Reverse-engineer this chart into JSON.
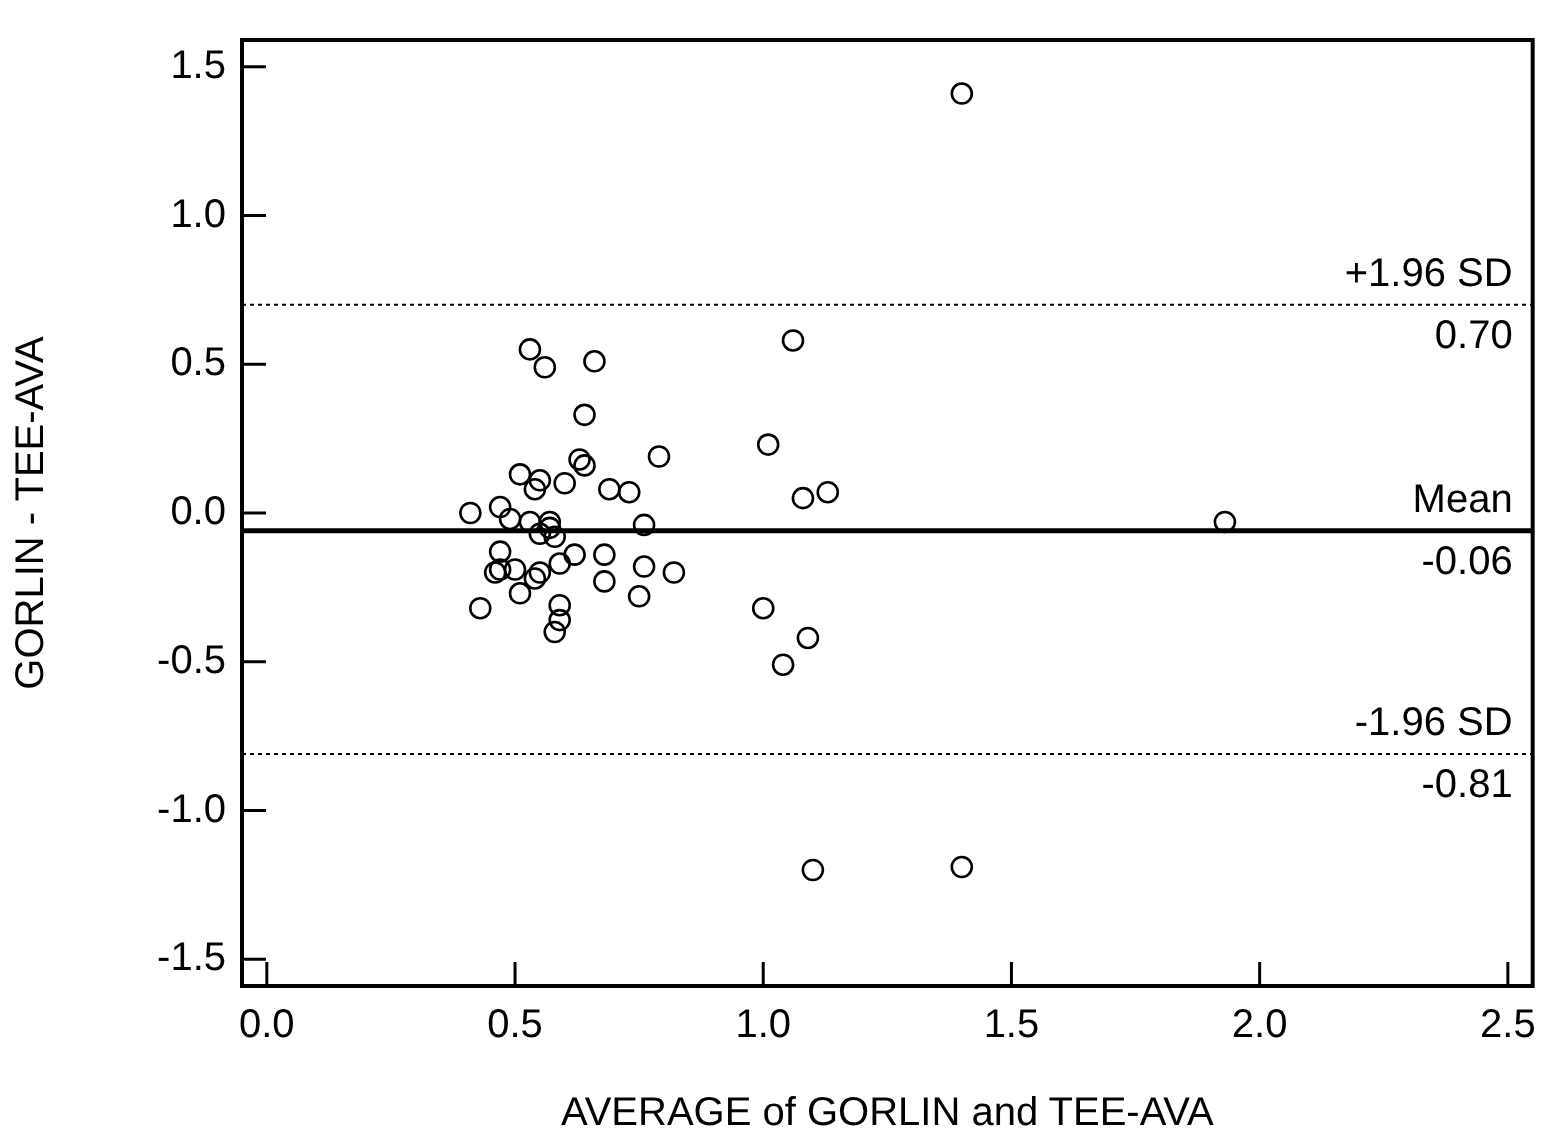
{
  "chart_data": {
    "type": "scatter",
    "xlabel": "AVERAGE of GORLIN and TEE-AVA",
    "ylabel": "GORLIN - TEE-AVA",
    "x": [
      0.53,
      0.56,
      0.66,
      0.64,
      0.79,
      0.63,
      0.64,
      0.51,
      0.55,
      0.54,
      0.6,
      0.69,
      0.73,
      0.47,
      0.41,
      0.49,
      0.53,
      0.57,
      0.57,
      0.55,
      0.58,
      0.76,
      0.47,
      0.62,
      0.68,
      0.59,
      0.46,
      0.47,
      0.5,
      0.55,
      0.54,
      0.76,
      0.82,
      0.68,
      0.51,
      0.75,
      0.43,
      0.59,
      0.59,
      0.58,
      1.06,
      1.01,
      1.08,
      1.13,
      1.0,
      1.09,
      1.04,
      1.1,
      1.4,
      1.4,
      1.93
    ],
    "values": [
      0.55,
      0.49,
      0.51,
      0.33,
      0.19,
      0.18,
      0.16,
      0.13,
      0.11,
      0.08,
      0.1,
      0.08,
      0.07,
      0.02,
      0.0,
      -0.02,
      -0.03,
      -0.03,
      -0.05,
      -0.07,
      -0.08,
      -0.04,
      -0.13,
      -0.14,
      -0.14,
      -0.17,
      -0.2,
      -0.19,
      -0.19,
      -0.2,
      -0.22,
      -0.18,
      -0.2,
      -0.23,
      -0.27,
      -0.28,
      -0.32,
      -0.31,
      -0.36,
      -0.4,
      0.58,
      0.23,
      0.05,
      0.07,
      -0.32,
      -0.42,
      -0.51,
      -1.2,
      -1.19,
      1.41,
      -0.03
    ],
    "color": "#000000",
    "marker": "circle",
    "xlim": [
      -0.05,
      2.55
    ],
    "xticks": [
      {
        "value": 0,
        "label": "0.0"
      },
      0.5,
      {
        "value": 1,
        "label": "1.0"
      },
      1.5,
      {
        "value": 2,
        "label": "2.0"
      },
      2.5
    ],
    "ylim": [
      -1.59,
      1.59
    ],
    "yticks": [
      {
        "value": -1.5,
        "label": "-1.5"
      },
      {
        "value": -1,
        "label": "-1.0"
      },
      -0.5,
      {
        "value": 0,
        "label": "0.0"
      },
      0.5,
      {
        "value": 1,
        "label": "1.0"
      },
      1.5
    ],
    "grid": false,
    "legend": false,
    "ref_lines": [
      {
        "axis": "y",
        "value": 0.7,
        "label": "+1.96 SD",
        "color": "#000000",
        "line_style": "dotted"
      },
      {
        "axis": "y",
        "value": -0.06,
        "label": "Mean",
        "color": "#000000",
        "line_style": "solid"
      },
      {
        "axis": "y",
        "value": -0.81,
        "label": "-1.96 SD",
        "color": "#000000",
        "line_style": "dotted"
      }
    ],
    "annotations": [
      {
        "text": "0.70",
        "y": 0.7
      },
      {
        "text": "-0.06",
        "y": -0.06
      },
      {
        "text": "-0.81",
        "y": -0.81
      }
    ]
  }
}
